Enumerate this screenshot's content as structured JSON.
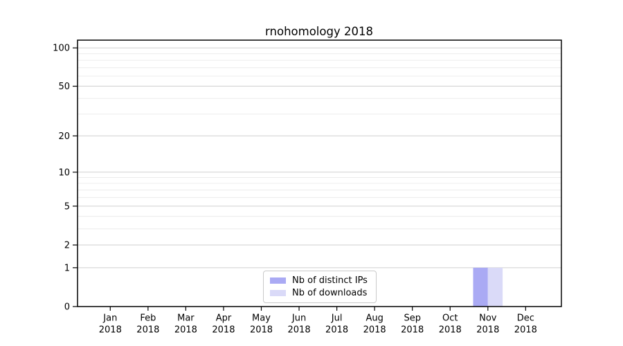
{
  "page": {
    "background": "#ffffff"
  },
  "chart_data": {
    "type": "bar",
    "title": "rnohomology 2018",
    "categories": [
      "Jan",
      "Feb",
      "Mar",
      "Apr",
      "May",
      "Jun",
      "Jul",
      "Aug",
      "Sep",
      "Oct",
      "Nov",
      "Dec"
    ],
    "x_year_label": "2018",
    "series": [
      {
        "name": "Nb of distinct IPs",
        "color": "#aaaaf4",
        "values": [
          0,
          0,
          0,
          0,
          0,
          0,
          0,
          0,
          0,
          0,
          1,
          0
        ]
      },
      {
        "name": "Nb of downloads",
        "color": "#dadaf8",
        "values": [
          0,
          0,
          0,
          0,
          0,
          0,
          0,
          0,
          0,
          0,
          1,
          0
        ]
      }
    ],
    "yscale": "log1p",
    "ylim": [
      0,
      115
    ],
    "y_major_ticks": [
      0,
      1,
      2,
      5,
      10,
      20,
      50,
      100
    ],
    "y_minor_gridlines": [
      3,
      4,
      6,
      7,
      8,
      9,
      30,
      40,
      60,
      70,
      80,
      90
    ],
    "grid": true,
    "legend_position": "bottom-center",
    "colors": {
      "axis": "#000000",
      "major_grid": "#cfcfcf",
      "minor_grid": "#ececec",
      "background": "#ffffff"
    }
  }
}
